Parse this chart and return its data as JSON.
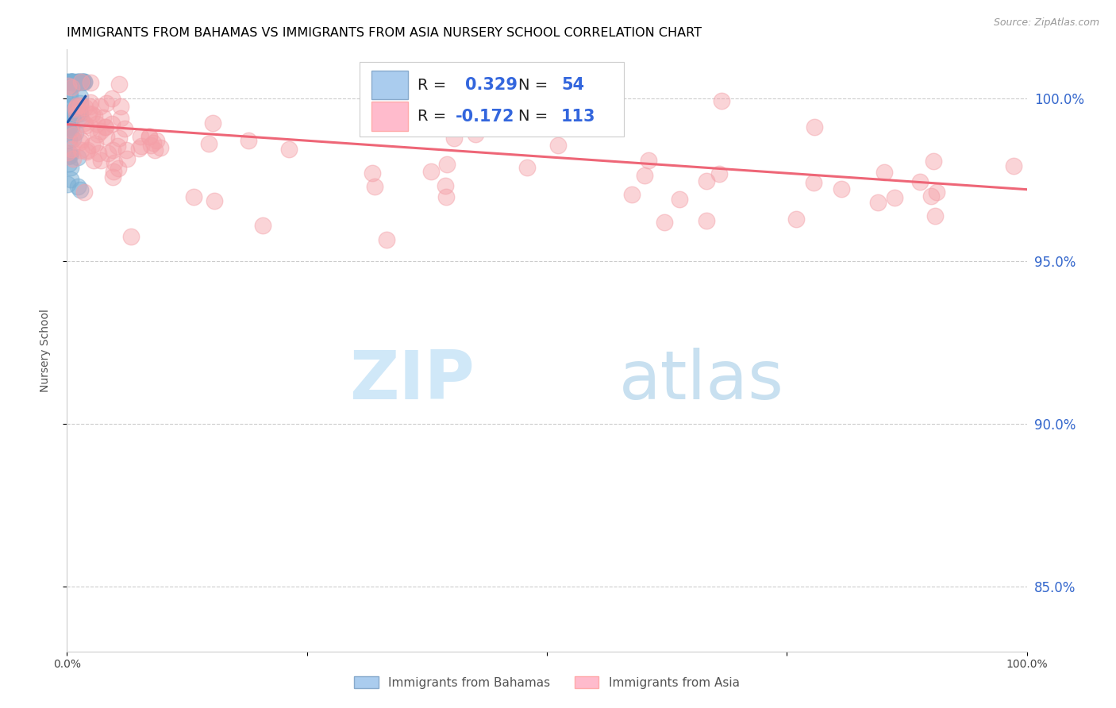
{
  "title": "IMMIGRANTS FROM BAHAMAS VS IMMIGRANTS FROM ASIA NURSERY SCHOOL CORRELATION CHART",
  "source": "Source: ZipAtlas.com",
  "ylabel": "Nursery School",
  "yticks": [
    85.0,
    90.0,
    95.0,
    100.0
  ],
  "ytick_labels": [
    "85.0%",
    "90.0%",
    "95.0%",
    "100.0%"
  ],
  "xlim": [
    0.0,
    100.0
  ],
  "ylim": [
    83.0,
    101.5
  ],
  "bahamas_R": 0.329,
  "bahamas_N": 54,
  "asia_R": -0.172,
  "asia_N": 113,
  "bahamas_color": "#7BAFD4",
  "asia_color": "#F4A0A8",
  "trend_blue": "#2255AA",
  "trend_pink": "#EE6677",
  "title_fontsize": 11.5,
  "axis_label_fontsize": 10,
  "tick_fontsize": 10,
  "legend_fontsize": 14,
  "watermark_zip_color": "#D0E8F8",
  "watermark_atlas_color": "#C8E0F0"
}
